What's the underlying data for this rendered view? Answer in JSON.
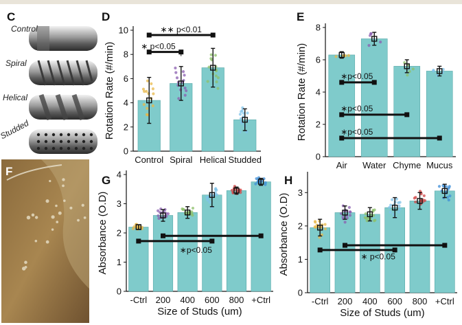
{
  "panels": {
    "C": "C",
    "D": "D",
    "E": "E",
    "F": "F",
    "G": "G",
    "H": "H"
  },
  "capsules": {
    "control": "Control",
    "spiral": "Spiral",
    "helical": "Helical",
    "studded": "Studded"
  },
  "colors": {
    "bar": "#7fcbcb",
    "bar_edge": "#5aa9a9",
    "dot_control": "#e8b84a",
    "dot_spiral": "#8b5fb0",
    "dot_helical": "#8ec06a",
    "dot_studded": "#7fc3ea",
    "dot_e_air": "#e8b84a",
    "dot_e_water": "#8b5fb0",
    "dot_e_chyme": "#8ec06a",
    "dot_e_mucus": "#7fc3ea",
    "dot_g_1": "#e8b84a",
    "dot_g_2": "#8b5fb0",
    "dot_g_3": "#8ec06a",
    "dot_g_4": "#7fc3ea",
    "dot_g_5": "#d04848",
    "dot_g_6": "#3f8fd8"
  },
  "chart_data": [
    {
      "id": "D",
      "type": "bar",
      "categories": [
        "Control",
        "Spiral",
        "Helical",
        "Studded"
      ],
      "values": [
        4.2,
        5.6,
        6.9,
        2.6
      ],
      "errors": [
        1.9,
        1.4,
        1.6,
        0.9
      ],
      "ylabel": "Rotation Rate (#/min)",
      "xlabel": "",
      "ylim": [
        0,
        10
      ],
      "yticks": [
        0,
        2,
        4,
        6,
        8,
        10
      ],
      "annotations": [
        {
          "text": "∗∗ p<0.01",
          "from": 0,
          "to": 2
        },
        {
          "text": "∗ p<0.05",
          "from": 0,
          "to": 1
        }
      ]
    },
    {
      "id": "E",
      "type": "bar",
      "categories": [
        "Air",
        "Water",
        "Chyme",
        "Mucus"
      ],
      "values": [
        6.3,
        7.3,
        5.6,
        5.3
      ],
      "errors": [
        0.2,
        0.4,
        0.4,
        0.3
      ],
      "ylabel": "Rotation Rate (#/min)",
      "xlabel": "",
      "ylim": [
        0,
        8
      ],
      "yticks": [
        0,
        2,
        4,
        6,
        8
      ],
      "annotations": [
        {
          "text": "∗p<0.05",
          "from": 0,
          "to": 1
        },
        {
          "text": "∗p<0.05",
          "from": 0,
          "to": 2
        },
        {
          "text": "∗p<0.05",
          "from": 0,
          "to": 3
        }
      ]
    },
    {
      "id": "G",
      "type": "bar",
      "categories": [
        "-Ctrl",
        "200",
        "400",
        "600",
        "800",
        "+Ctrl"
      ],
      "values": [
        2.2,
        2.6,
        2.7,
        3.3,
        3.45,
        3.75
      ],
      "errors": [
        0.08,
        0.2,
        0.2,
        0.4,
        0.12,
        0.12
      ],
      "ylabel": "Absorbance (O.D)",
      "xlabel": "Size of Studs (um)",
      "ylim": [
        0,
        4
      ],
      "yticks": [
        0,
        1,
        2,
        3,
        4
      ],
      "annotations": [
        {
          "text": "∗p<0.05",
          "from": 0,
          "to": 3
        },
        {
          "text": "",
          "from": 1,
          "to": 5
        }
      ]
    },
    {
      "id": "H",
      "type": "bar",
      "categories": [
        "-Ctrl",
        "200",
        "400",
        "600",
        "800",
        "+Ctrl"
      ],
      "values": [
        1.95,
        2.4,
        2.35,
        2.55,
        2.75,
        3.05
      ],
      "errors": [
        0.25,
        0.2,
        0.2,
        0.3,
        0.25,
        0.2
      ],
      "ylabel": "Absorbance (O.D)",
      "xlabel": "Size of Studs (um)",
      "ylim": [
        0,
        3.5
      ],
      "yticks": [
        0,
        1,
        2,
        3
      ],
      "annotations": [
        {
          "text": "∗ p<0.05",
          "from": 0,
          "to": 3
        },
        {
          "text": "",
          "from": 1,
          "to": 5
        }
      ]
    }
  ]
}
